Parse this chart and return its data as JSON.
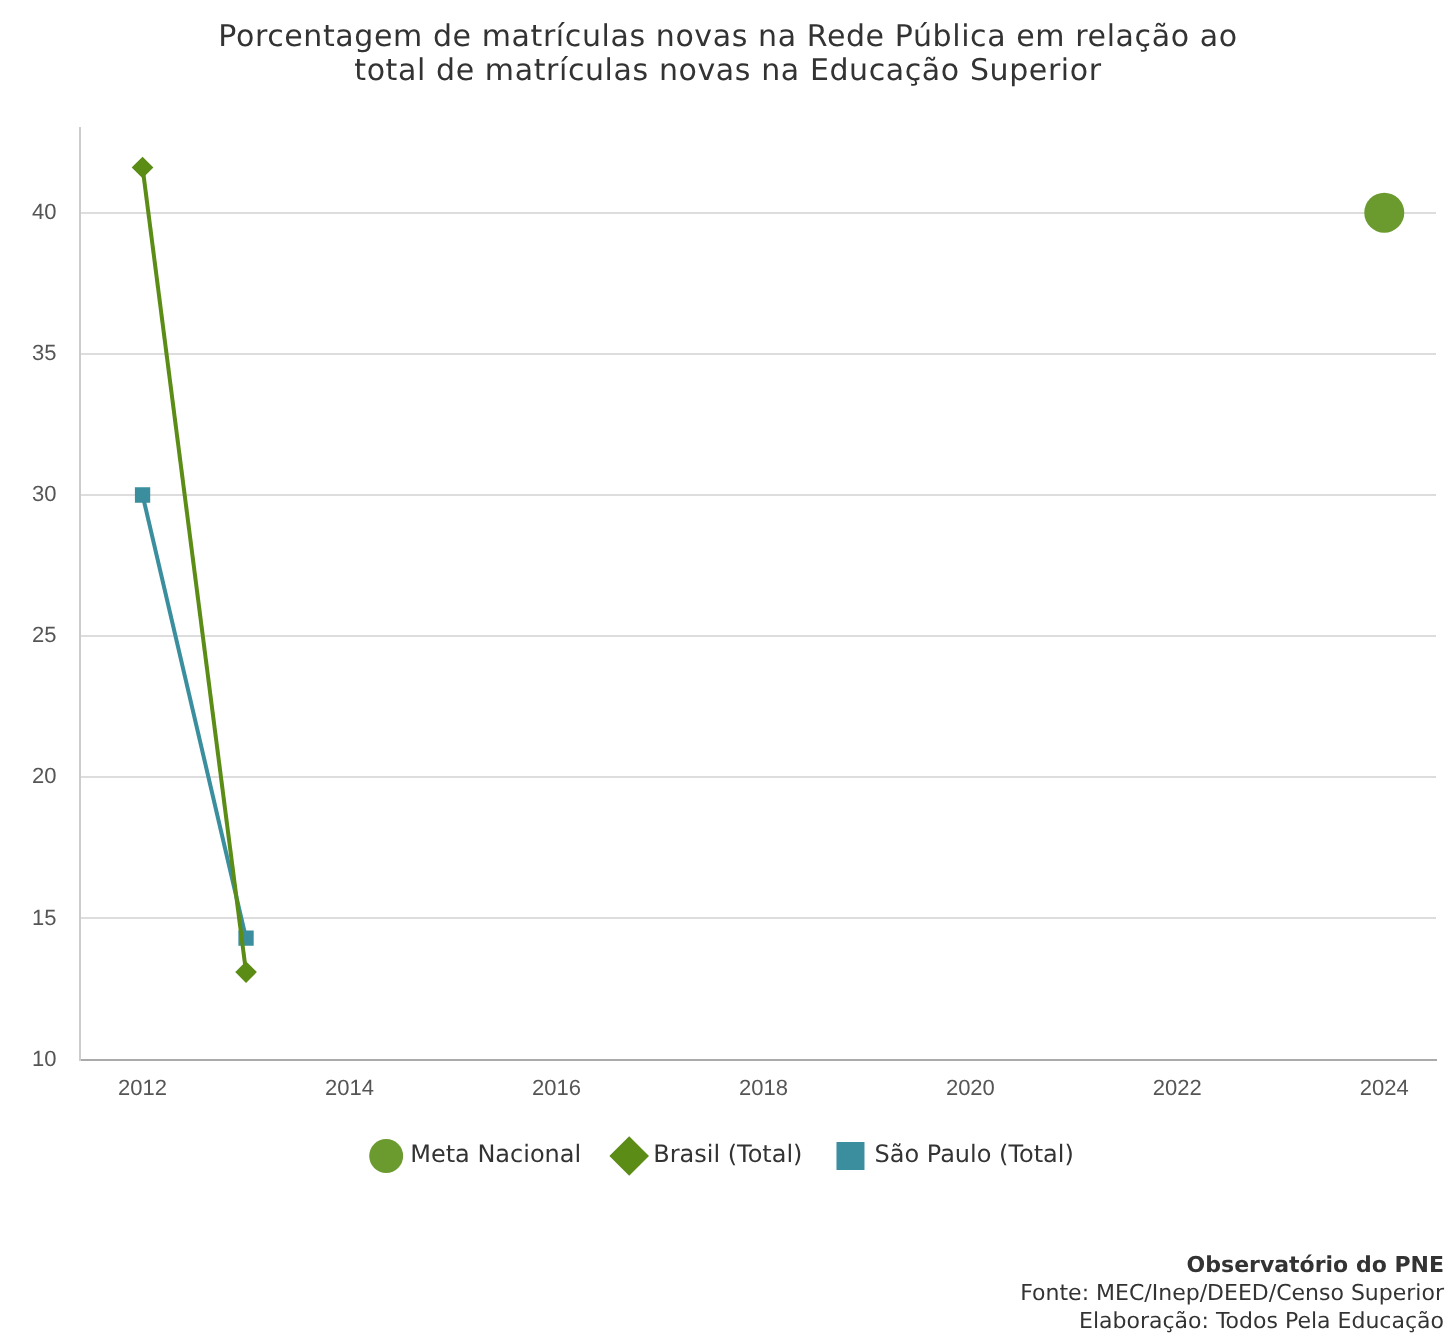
{
  "chart_data": {
    "type": "line",
    "title": "Porcentagem de matrículas novas na Rede Pública em relação ao total de matrículas novas na Educação Superior",
    "xlim": [
      2011.4,
      2024.5
    ],
    "xticks": [
      2012,
      2014,
      2016,
      2018,
      2020,
      2022,
      2024
    ],
    "ylim": [
      10,
      43
    ],
    "yticks": [
      10,
      15,
      20,
      25,
      30,
      35,
      40
    ],
    "grid": "y",
    "legend": "bottom",
    "series": [
      {
        "name": "Meta Nacional",
        "type": "scatter",
        "marker": "circle",
        "color": "#6b9a2f",
        "x": [
          2024
        ],
        "values": [
          40
        ]
      },
      {
        "name": "Brasil (Total)",
        "type": "line",
        "marker": "diamond",
        "color": "#5b8c16",
        "x": [
          2012,
          2013
        ],
        "values": [
          41.6,
          13.1
        ]
      },
      {
        "name": "São Paulo (Total)",
        "type": "line",
        "marker": "square",
        "color": "#3a8e9e",
        "x": [
          2012,
          2013
        ],
        "values": [
          30,
          14.3
        ]
      }
    ],
    "annotations": [
      "Observatório do PNE",
      "Fonte: MEC/Inep/DEED/Censo Superior",
      "Elaboração: Todos Pela Educação"
    ]
  }
}
